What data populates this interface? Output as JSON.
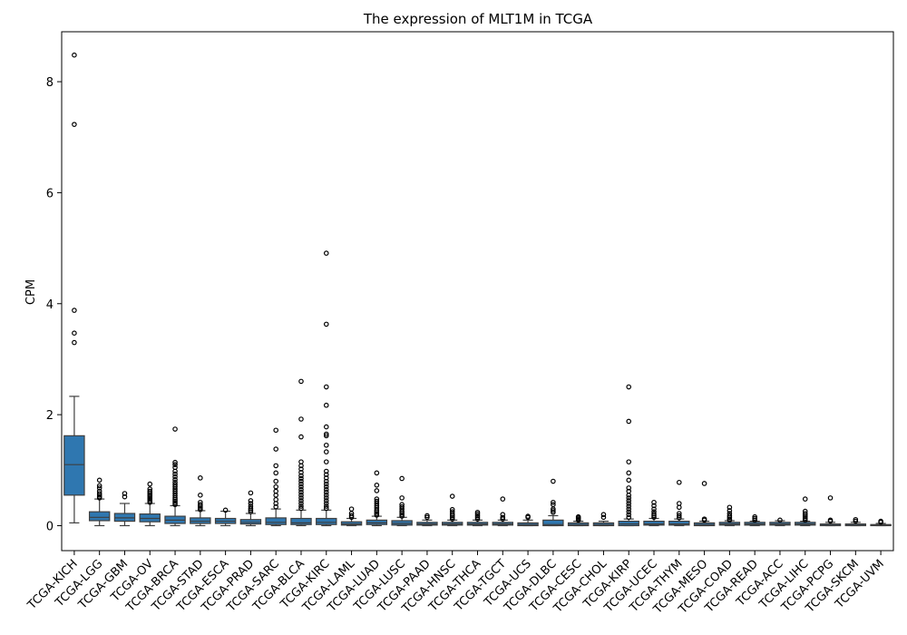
{
  "chart_data": {
    "type": "box",
    "title": "The expression of MLT1M in TCGA",
    "xlabel": "",
    "ylabel": "CPM",
    "ylim": [
      -0.45,
      8.9
    ],
    "yticks": [
      0,
      2,
      4,
      6,
      8
    ],
    "box_color": "#2f77b0",
    "categories": [
      "TCGA-KICH",
      "TCGA-LGG",
      "TCGA-GBM",
      "TCGA-OV",
      "TCGA-BRCA",
      "TCGA-STAD",
      "TCGA-ESCA",
      "TCGA-PRAD",
      "TCGA-SARC",
      "TCGA-BLCA",
      "TCGA-KIRC",
      "TCGA-LAML",
      "TCGA-LUAD",
      "TCGA-LUSC",
      "TCGA-PAAD",
      "TCGA-HNSC",
      "TCGA-THCA",
      "TCGA-TGCT",
      "TCGA-UCS",
      "TCGA-DLBC",
      "TCGA-CESC",
      "TCGA-CHOL",
      "TCGA-KIRP",
      "TCGA-UCEC",
      "TCGA-THYM",
      "TCGA-MESO",
      "TCGA-COAD",
      "TCGA-READ",
      "TCGA-ACC",
      "TCGA-LIHC",
      "TCGA-PCPG",
      "TCGA-SKCM",
      "TCGA-UVM"
    ],
    "boxes": [
      {
        "whislo": 0.05,
        "q1": 0.55,
        "med": 1.1,
        "q3": 1.62,
        "whishi": 2.33,
        "fliers": [
          8.48,
          7.23,
          3.88,
          3.47,
          3.3
        ]
      },
      {
        "whislo": 0.0,
        "q1": 0.09,
        "med": 0.15,
        "q3": 0.25,
        "whishi": 0.48,
        "fliers": [
          0.5,
          0.52,
          0.55,
          0.58,
          0.62,
          0.68,
          0.72,
          0.82
        ]
      },
      {
        "whislo": 0.0,
        "q1": 0.08,
        "med": 0.14,
        "q3": 0.22,
        "whishi": 0.4,
        "fliers": [
          0.52,
          0.58
        ]
      },
      {
        "whislo": 0.0,
        "q1": 0.07,
        "med": 0.13,
        "q3": 0.21,
        "whishi": 0.4,
        "fliers": [
          0.42,
          0.45,
          0.48,
          0.5,
          0.53,
          0.56,
          0.59,
          0.62,
          0.66,
          0.75
        ]
      },
      {
        "whislo": 0.0,
        "q1": 0.04,
        "med": 0.1,
        "q3": 0.17,
        "whishi": 0.36,
        "fliers": [
          0.38,
          0.41,
          0.44,
          0.47,
          0.5,
          0.54,
          0.58,
          0.62,
          0.66,
          0.7,
          0.74,
          0.78,
          0.83,
          0.88,
          0.93,
          0.98,
          1.05,
          1.1,
          1.14,
          1.74
        ]
      },
      {
        "whislo": 0.0,
        "q1": 0.04,
        "med": 0.08,
        "q3": 0.14,
        "whishi": 0.27,
        "fliers": [
          0.29,
          0.32,
          0.35,
          0.38,
          0.42,
          0.55,
          0.86
        ]
      },
      {
        "whislo": 0.0,
        "q1": 0.04,
        "med": 0.08,
        "q3": 0.13,
        "whishi": 0.26,
        "fliers": [
          0.28
        ]
      },
      {
        "whislo": 0.0,
        "q1": 0.03,
        "med": 0.06,
        "q3": 0.11,
        "whishi": 0.22,
        "fliers": [
          0.25,
          0.28,
          0.31,
          0.35,
          0.4,
          0.45,
          0.59
        ]
      },
      {
        "whislo": 0.0,
        "q1": 0.02,
        "med": 0.06,
        "q3": 0.14,
        "whishi": 0.3,
        "fliers": [
          0.34,
          0.4,
          0.47,
          0.55,
          0.62,
          0.7,
          0.8,
          0.95,
          1.08,
          1.38,
          1.72
        ]
      },
      {
        "whislo": 0.0,
        "q1": 0.02,
        "med": 0.05,
        "q3": 0.13,
        "whishi": 0.28,
        "fliers": [
          0.31,
          0.35,
          0.4,
          0.45,
          0.5,
          0.55,
          0.6,
          0.65,
          0.7,
          0.75,
          0.8,
          0.85,
          0.9,
          0.96,
          1.02,
          1.08,
          1.15,
          1.6,
          1.92,
          2.6
        ]
      },
      {
        "whislo": 0.0,
        "q1": 0.02,
        "med": 0.06,
        "q3": 0.13,
        "whishi": 0.28,
        "fliers": [
          0.31,
          0.35,
          0.4,
          0.45,
          0.5,
          0.55,
          0.6,
          0.65,
          0.7,
          0.75,
          0.8,
          0.86,
          0.92,
          0.98,
          1.15,
          1.33,
          1.45,
          1.62,
          1.65,
          1.78,
          2.17,
          2.5,
          3.63,
          4.91
        ]
      },
      {
        "whislo": 0.0,
        "q1": 0.01,
        "med": 0.03,
        "q3": 0.07,
        "whishi": 0.13,
        "fliers": [
          0.15,
          0.18,
          0.22,
          0.3
        ]
      },
      {
        "whislo": 0.0,
        "q1": 0.02,
        "med": 0.05,
        "q3": 0.1,
        "whishi": 0.17,
        "fliers": [
          0.19,
          0.22,
          0.25,
          0.28,
          0.32,
          0.36,
          0.4,
          0.44,
          0.48,
          0.63,
          0.73,
          0.95
        ]
      },
      {
        "whislo": 0.0,
        "q1": 0.01,
        "med": 0.04,
        "q3": 0.09,
        "whishi": 0.15,
        "fliers": [
          0.17,
          0.2,
          0.23,
          0.26,
          0.3,
          0.34,
          0.38,
          0.5,
          0.85
        ]
      },
      {
        "whislo": 0.0,
        "q1": 0.01,
        "med": 0.03,
        "q3": 0.06,
        "whishi": 0.1,
        "fliers": [
          0.15,
          0.18
        ]
      },
      {
        "whislo": 0.0,
        "q1": 0.01,
        "med": 0.03,
        "q3": 0.06,
        "whishi": 0.1,
        "fliers": [
          0.12,
          0.15,
          0.18,
          0.21,
          0.25,
          0.29,
          0.53
        ]
      },
      {
        "whislo": 0.0,
        "q1": 0.01,
        "med": 0.03,
        "q3": 0.06,
        "whishi": 0.1,
        "fliers": [
          0.12,
          0.15,
          0.18,
          0.21,
          0.24
        ]
      },
      {
        "whislo": 0.0,
        "q1": 0.01,
        "med": 0.03,
        "q3": 0.06,
        "whishi": 0.1,
        "fliers": [
          0.12,
          0.15,
          0.2,
          0.48
        ]
      },
      {
        "whislo": 0.0,
        "q1": 0.0,
        "med": 0.02,
        "q3": 0.05,
        "whishi": 0.1,
        "fliers": [
          0.15,
          0.17
        ]
      },
      {
        "whislo": 0.0,
        "q1": 0.0,
        "med": 0.02,
        "q3": 0.1,
        "whishi": 0.18,
        "fliers": [
          0.24,
          0.27,
          0.3,
          0.38,
          0.42,
          0.8
        ]
      },
      {
        "whislo": 0.0,
        "q1": 0.0,
        "med": 0.02,
        "q3": 0.05,
        "whishi": 0.08,
        "fliers": [
          0.1,
          0.12,
          0.14,
          0.16
        ]
      },
      {
        "whislo": 0.0,
        "q1": 0.0,
        "med": 0.02,
        "q3": 0.05,
        "whishi": 0.08,
        "fliers": [
          0.15,
          0.2
        ]
      },
      {
        "whislo": 0.0,
        "q1": 0.0,
        "med": 0.03,
        "q3": 0.08,
        "whishi": 0.12,
        "fliers": [
          0.15,
          0.2,
          0.25,
          0.3,
          0.35,
          0.4,
          0.45,
          0.5,
          0.55,
          0.62,
          0.68,
          0.82,
          0.95,
          1.15,
          1.88,
          2.5
        ]
      },
      {
        "whislo": 0.0,
        "q1": 0.01,
        "med": 0.03,
        "q3": 0.08,
        "whishi": 0.13,
        "fliers": [
          0.15,
          0.18,
          0.21,
          0.25,
          0.3,
          0.36,
          0.42
        ]
      },
      {
        "whislo": 0.0,
        "q1": 0.01,
        "med": 0.03,
        "q3": 0.08,
        "whishi": 0.12,
        "fliers": [
          0.14,
          0.18,
          0.22,
          0.33,
          0.4,
          0.78
        ]
      },
      {
        "whislo": 0.0,
        "q1": 0.0,
        "med": 0.02,
        "q3": 0.05,
        "whishi": 0.08,
        "fliers": [
          0.1,
          0.12,
          0.76
        ]
      },
      {
        "whislo": 0.0,
        "q1": 0.01,
        "med": 0.03,
        "q3": 0.06,
        "whishi": 0.09,
        "fliers": [
          0.1,
          0.12,
          0.15,
          0.18,
          0.22,
          0.27,
          0.33
        ]
      },
      {
        "whislo": 0.0,
        "q1": 0.01,
        "med": 0.03,
        "q3": 0.06,
        "whishi": 0.08,
        "fliers": [
          0.1,
          0.13,
          0.16
        ]
      },
      {
        "whislo": 0.0,
        "q1": 0.01,
        "med": 0.03,
        "q3": 0.06,
        "whishi": 0.09,
        "fliers": [
          0.1
        ]
      },
      {
        "whislo": 0.0,
        "q1": 0.01,
        "med": 0.03,
        "q3": 0.06,
        "whishi": 0.08,
        "fliers": [
          0.1,
          0.13,
          0.16,
          0.19,
          0.22,
          0.26,
          0.48
        ]
      },
      {
        "whislo": 0.0,
        "q1": 0.0,
        "med": 0.01,
        "q3": 0.03,
        "whishi": 0.06,
        "fliers": [
          0.08,
          0.1,
          0.5
        ]
      },
      {
        "whislo": 0.0,
        "q1": 0.0,
        "med": 0.01,
        "q3": 0.03,
        "whishi": 0.06,
        "fliers": [
          0.08,
          0.11
        ]
      },
      {
        "whislo": 0.0,
        "q1": 0.0,
        "med": 0.01,
        "q3": 0.02,
        "whishi": 0.04,
        "fliers": [
          0.06,
          0.08
        ]
      }
    ]
  }
}
